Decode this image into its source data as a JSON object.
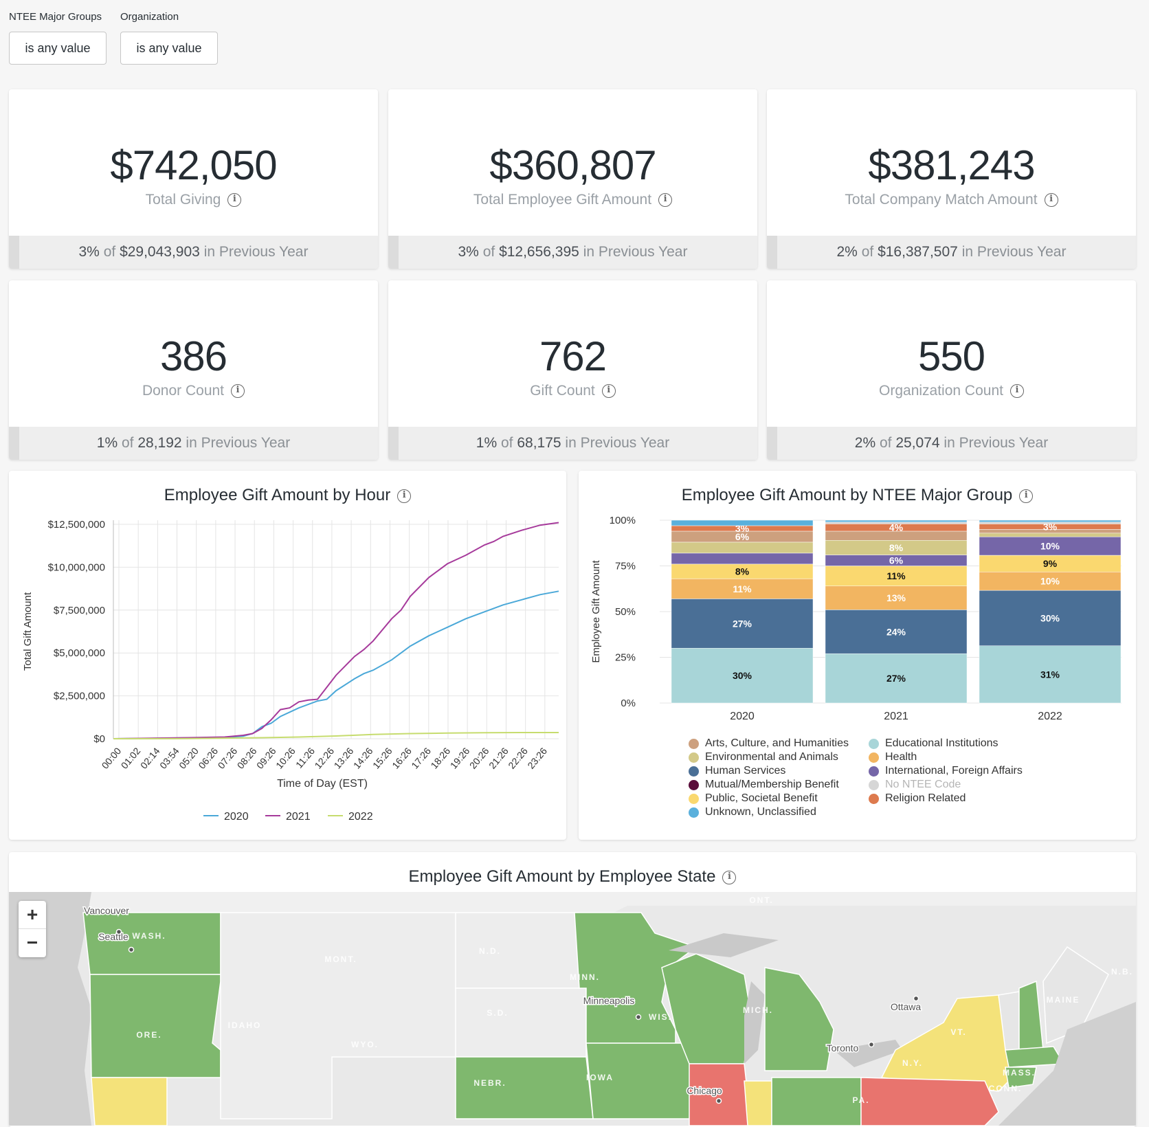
{
  "filters": [
    {
      "label": "NTEE Major Groups",
      "value": "is any value"
    },
    {
      "label": "Organization",
      "value": "is any value"
    }
  ],
  "kpis": [
    {
      "value": "$742,050",
      "label": "Total Giving",
      "pct": "3%",
      "of": "of",
      "prev": "$29,043,903",
      "suffix": "in Previous Year"
    },
    {
      "value": "$360,807",
      "label": "Total Employee Gift Amount",
      "pct": "3%",
      "of": "of",
      "prev": "$12,656,395",
      "suffix": "in Previous Year"
    },
    {
      "value": "$381,243",
      "label": "Total Company Match Amount",
      "pct": "2%",
      "of": "of",
      "prev": "$16,387,507",
      "suffix": "in Previous Year"
    },
    {
      "value": "386",
      "label": "Donor Count",
      "pct": "1%",
      "of": "of",
      "prev": "28,192",
      "suffix": "in Previous Year"
    },
    {
      "value": "762",
      "label": "Gift Count",
      "pct": "1%",
      "of": "of",
      "prev": "68,175",
      "suffix": "in Previous Year"
    },
    {
      "value": "550",
      "label": "Organization Count",
      "pct": "2%",
      "of": "of",
      "prev": "25,074",
      "suffix": "in Previous Year"
    }
  ],
  "info_icon": "info-icon",
  "chart_data": [
    {
      "type": "line",
      "title": "Employee Gift Amount by Hour",
      "xlabel": "Time of Day (EST)",
      "ylabel": "Total Gift Amount",
      "ylim": [
        0,
        12500000
      ],
      "yticks": [
        "$0",
        "$2,500,000",
        "$5,000,000",
        "$7,500,000",
        "$10,000,000",
        "$12,500,000"
      ],
      "xticks": [
        "00:00",
        "01:02",
        "02:14",
        "03:54",
        "05:20",
        "06:26",
        "07:26",
        "08:26",
        "09:26",
        "10:26",
        "11:26",
        "12:26",
        "13:26",
        "14:26",
        "15:26",
        "16:26",
        "17:26",
        "18:26",
        "19:26",
        "20:26",
        "21:26",
        "22:26",
        "23:26"
      ],
      "grid": true,
      "legend_position": "bottom",
      "series": [
        {
          "name": "2020",
          "color": "#4aa8d8",
          "x": [
            0,
            2,
            4,
            6,
            7,
            7.5,
            8,
            8.5,
            9,
            10,
            11,
            11.5,
            12,
            13,
            13.5,
            14,
            15,
            15.5,
            16,
            17,
            17.5,
            18,
            19,
            20,
            21,
            22,
            23,
            24
          ],
          "y": [
            0,
            20000,
            50000,
            80000,
            150000,
            300000,
            700000,
            900000,
            1300000,
            1800000,
            2200000,
            2300000,
            2800000,
            3500000,
            3800000,
            4000000,
            4600000,
            5000000,
            5400000,
            6000000,
            6250000,
            6500000,
            7000000,
            7400000,
            7800000,
            8100000,
            8400000,
            8600000
          ]
        },
        {
          "name": "2021",
          "color": "#a63a9b",
          "x": [
            0,
            2,
            4,
            6,
            7,
            7.5,
            8,
            8.5,
            9,
            9.5,
            10,
            10.5,
            11,
            11.5,
            12,
            13,
            13.5,
            14,
            15,
            15.5,
            16,
            17,
            17.5,
            18,
            19,
            20,
            20.5,
            21,
            22,
            23,
            24
          ],
          "y": [
            0,
            30000,
            60000,
            100000,
            200000,
            300000,
            600000,
            1100000,
            1700000,
            1800000,
            2150000,
            2250000,
            2300000,
            3000000,
            3700000,
            4800000,
            5200000,
            5700000,
            7000000,
            7500000,
            8300000,
            9400000,
            9800000,
            10200000,
            10700000,
            11300000,
            11500000,
            11800000,
            12150000,
            12450000,
            12600000
          ]
        },
        {
          "name": "2022",
          "color": "#c6dc6e",
          "x": [
            0,
            4,
            8,
            10,
            12,
            14,
            16,
            18,
            20,
            22,
            24
          ],
          "y": [
            0,
            10000,
            60000,
            100000,
            160000,
            250000,
            300000,
            330000,
            350000,
            360000,
            360000
          ]
        }
      ]
    },
    {
      "type": "bar",
      "stacked": "percent",
      "title": "Employee Gift Amount by NTEE Major Group",
      "ylabel": "Employee Gift Amount",
      "yticks": [
        "0%",
        "25%",
        "50%",
        "75%",
        "100%"
      ],
      "categories": [
        "2020",
        "2021",
        "2022"
      ],
      "legend_position": "bottom",
      "series": [
        {
          "name": "Educational Institutions",
          "color": "#a8d5d8",
          "values": [
            30,
            27,
            31
          ],
          "labels": [
            "30%",
            "27%",
            "31%"
          ]
        },
        {
          "name": "Human Services",
          "color": "#4a6f96",
          "values": [
            27,
            24,
            30
          ],
          "labels": [
            "27%",
            "24%",
            "30%"
          ]
        },
        {
          "name": "Health",
          "color": "#f2b561",
          "values": [
            11,
            13,
            10
          ],
          "labels": [
            "11%",
            "13%",
            "10%"
          ]
        },
        {
          "name": "Public, Societal Benefit",
          "color": "#fad86f",
          "values": [
            8,
            11,
            9
          ],
          "labels": [
            "8%",
            "11%",
            "9%"
          ]
        },
        {
          "name": "International, Foreign Affairs",
          "color": "#7566a8",
          "values": [
            6,
            6,
            10
          ],
          "labels": [
            "",
            "6%",
            "10%"
          ]
        },
        {
          "name": "Environmental and Animals",
          "color": "#d3c988",
          "values": [
            6,
            8,
            2
          ],
          "labels": [
            "",
            "8%",
            ""
          ]
        },
        {
          "name": "Arts, Culture, and Humanities",
          "color": "#cda07e",
          "values": [
            6,
            5,
            2
          ],
          "labels": [
            "6%",
            "",
            ""
          ]
        },
        {
          "name": "Mutual/Membership Benefit",
          "color": "#5a0d3a",
          "values": [
            0,
            0,
            0
          ],
          "labels": [
            "",
            "",
            ""
          ]
        },
        {
          "name": "Religion Related",
          "color": "#dd7a4e",
          "values": [
            3,
            4,
            3
          ],
          "labels": [
            "3%",
            "4%",
            "3%"
          ]
        },
        {
          "name": "No NTEE Code",
          "color": "#d6d6d6",
          "values": [
            0,
            1,
            1
          ],
          "labels": [
            "",
            "",
            ""
          ]
        },
        {
          "name": "Unknown, Unclassified",
          "color": "#5ab0dc",
          "values": [
            3,
            1,
            1
          ],
          "labels": [
            "",
            "",
            ""
          ]
        }
      ],
      "legend": [
        {
          "name": "Arts, Culture, and Humanities",
          "color": "#cda07e",
          "muted": false
        },
        {
          "name": "Educational Institutions",
          "color": "#a8d5d8",
          "muted": false
        },
        {
          "name": "Environmental and Animals",
          "color": "#d3c988",
          "muted": false
        },
        {
          "name": "Health",
          "color": "#f2b561",
          "muted": false
        },
        {
          "name": "Human Services",
          "color": "#4a6f96",
          "muted": false
        },
        {
          "name": "International, Foreign Affairs",
          "color": "#7566a8",
          "muted": false
        },
        {
          "name": "Mutual/Membership Benefit",
          "color": "#5a0d3a",
          "muted": false
        },
        {
          "name": "No NTEE Code",
          "color": "#d6d6d6",
          "muted": true
        },
        {
          "name": "Public, Societal Benefit",
          "color": "#fad86f",
          "muted": false
        },
        {
          "name": "Religion Related",
          "color": "#dd7a4e",
          "muted": false
        },
        {
          "name": "Unknown, Unclassified",
          "color": "#5ab0dc",
          "muted": false
        }
      ]
    }
  ],
  "map": {
    "title": "Employee Gift Amount by Employee State",
    "zoom_in": "+",
    "zoom_out": "−",
    "labels": [
      "Vancouver",
      "Seattle",
      "WASH.",
      "ORE.",
      "IDAHO",
      "MONT.",
      "WYO.",
      "N.D.",
      "S.D.",
      "NEBR.",
      "MINN.",
      "Minneapolis",
      "IOWA",
      "WIS.",
      "MICH.",
      "Chicago",
      "ONT.",
      "Toronto",
      "Ottawa",
      "N.Y.",
      "PA.",
      "VT.",
      "MAINE",
      "N.B.",
      "MASS.",
      "CONN."
    ],
    "colors": {
      "green": "#7fb86e",
      "yellow": "#f4e27a",
      "red": "#e8746e",
      "land": "#e6e6e6",
      "water": "#c9c9c9"
    }
  }
}
